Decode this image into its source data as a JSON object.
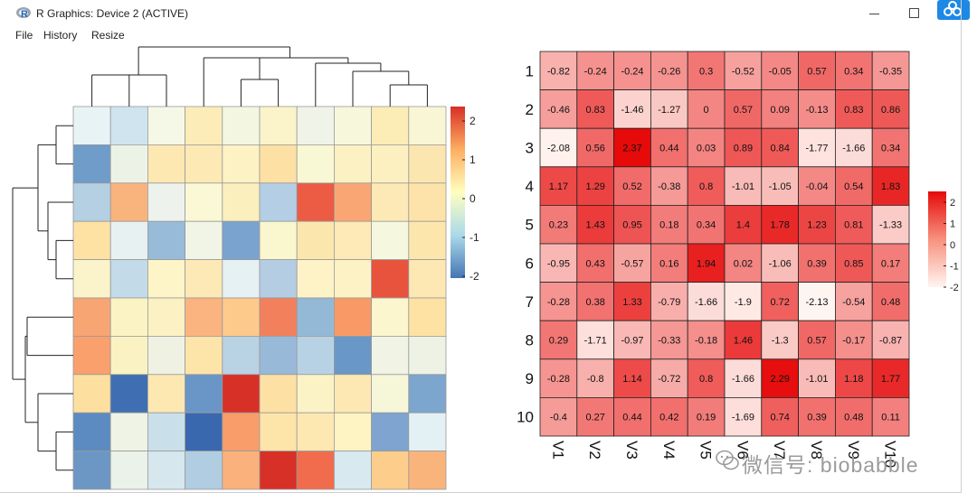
{
  "window": {
    "title": "R Graphics: Device 2 (ACTIVE)",
    "menu": [
      "File",
      "History",
      "Resize"
    ]
  },
  "left_heatmap": {
    "legend_ticks": [
      "2",
      "1",
      "0",
      "-1",
      "-2"
    ],
    "colors": [
      [
        "#e7f3f5",
        "#cfe4ee",
        "#f5f8e6",
        "#fcecb7",
        "#f3f7e2",
        "#fbf3c9",
        "#eff3e8",
        "#f7f7dc",
        "#fcecb5",
        "#f8f6d5"
      ],
      [
        "#6f9cc8",
        "#edf2e7",
        "#fde8b2",
        "#fde9b4",
        "#fdf2c4",
        "#fde0a4",
        "#f9f8d4",
        "#fbf1c2",
        "#fdf0c0",
        "#fbe6b0"
      ],
      [
        "#b5d0e3",
        "#f9b37c",
        "#edf3ec",
        "#fbf9d5",
        "#fbefbd",
        "#b4cfe5",
        "#ec5b44",
        "#f9a674",
        "#fde9b5",
        "#fde3a9"
      ],
      [
        "#fde2a4",
        "#e7f1f1",
        "#98bbd9",
        "#f1f5e5",
        "#7aa3d0",
        "#faf6cd",
        "#fbe6ae",
        "#fdeab6",
        "#f6f7df",
        "#fde6ac"
      ],
      [
        "#fbf4cb",
        "#c3dbe8",
        "#fdf4c7",
        "#fde9b5",
        "#e6f1f4",
        "#b4cde3",
        "#fdf3c6",
        "#fdf2c6",
        "#e8533d",
        "#fde8b4"
      ],
      [
        "#f8a574",
        "#fbf3c3",
        "#fbf1c3",
        "#fbb47f",
        "#fdca8b",
        "#f2805c",
        "#94b9d7",
        "#f99a66",
        "#fbf6ce",
        "#fde2a4"
      ],
      [
        "#f9a06d",
        "#fbf2c3",
        "#eff2e3",
        "#fde4a9",
        "#b9d2e4",
        "#98bad8",
        "#b8d2e5",
        "#6998c8",
        "#f1f4e4",
        "#edf2e4"
      ],
      [
        "#fde0a0",
        "#3f6fb2",
        "#fde8b2",
        "#6a96c7",
        "#d73027",
        "#fde1a4",
        "#fbf3c6",
        "#fde8b4",
        "#f6f6d9",
        "#7ca6cd"
      ],
      [
        "#5c8bc2",
        "#eef3e6",
        "#c9dfea",
        "#3a68af",
        "#f99d6b",
        "#fde4a8",
        "#fde8b2",
        "#fef3c2",
        "#7ea4cf",
        "#e4f1f4"
      ],
      [
        "#6c97c5",
        "#eaf2e9",
        "#d6e7ee",
        "#b0cde2",
        "#fbb17c",
        "#d73027",
        "#f06c4d",
        "#d8e9f0",
        "#fdcd8c",
        "#f9b47c"
      ]
    ]
  },
  "right_heatmap": {
    "row_labels": [
      "1",
      "2",
      "3",
      "4",
      "5",
      "6",
      "7",
      "8",
      "9",
      "10"
    ],
    "col_labels": [
      "V1",
      "V2",
      "V3",
      "V4",
      "V5",
      "V6",
      "V7",
      "V8",
      "V9",
      "V10"
    ],
    "values": [
      [
        -0.82,
        -0.24,
        -0.24,
        -0.26,
        0.3,
        -0.52,
        -0.05,
        0.57,
        0.34,
        -0.35
      ],
      [
        -0.46,
        0.83,
        -1.46,
        -1.27,
        0,
        0.57,
        0.09,
        -0.13,
        0.83,
        0.86
      ],
      [
        -2.08,
        0.56,
        2.37,
        0.44,
        0.03,
        0.89,
        0.84,
        -1.77,
        -1.66,
        0.34
      ],
      [
        1.17,
        1.29,
        0.52,
        -0.38,
        0.8,
        -1.01,
        -1.05,
        -0.04,
        0.54,
        1.83
      ],
      [
        0.23,
        1.43,
        0.95,
        0.18,
        0.34,
        1.4,
        1.78,
        1.23,
        0.81,
        -1.33
      ],
      [
        -0.95,
        0.43,
        -0.57,
        0.16,
        1.94,
        0.02,
        -1.06,
        0.39,
        0.85,
        0.17
      ],
      [
        -0.28,
        0.38,
        1.33,
        -0.79,
        -1.66,
        -1.9,
        0.72,
        -2.13,
        -0.54,
        0.48
      ],
      [
        0.29,
        -1.71,
        -0.97,
        -0.33,
        -0.18,
        1.46,
        -1.3,
        0.57,
        -0.17,
        -0.87
      ],
      [
        -0.28,
        -0.8,
        1.14,
        -0.72,
        0.8,
        -1.66,
        2.29,
        -1.01,
        1.18,
        1.77
      ],
      [
        -0.4,
        0.27,
        0.44,
        0.42,
        0.19,
        -1.69,
        0.74,
        0.39,
        0.48,
        0.11
      ]
    ],
    "legend_ticks": [
      "2",
      "1",
      "0",
      "-1",
      "-2"
    ]
  },
  "watermark": "微信号: biobabble"
}
